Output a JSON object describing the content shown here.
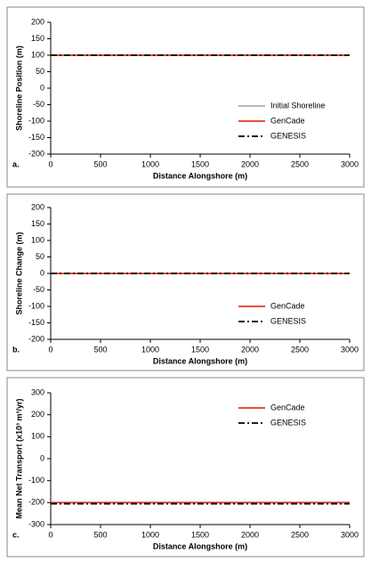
{
  "chart_data": [
    {
      "type": "line",
      "panel_label": "a.",
      "xlabel": "Distance Alongshore (m)",
      "ylabel": "Shoreline Position (m)",
      "x": [
        0,
        3000
      ],
      "series": [
        {
          "name": "Initial Shoreline",
          "color": "#b0b0b0",
          "dash": "solid",
          "values": [
            100,
            100
          ]
        },
        {
          "name": "GenCade",
          "color": "#e8322a",
          "dash": "solid",
          "values": [
            100,
            100
          ]
        },
        {
          "name": "GENESIS",
          "color": "#000000",
          "dash": "dashdot",
          "values": [
            100,
            100
          ]
        }
      ],
      "xlim": [
        0,
        3000
      ],
      "xticks": [
        0,
        500,
        1000,
        1500,
        2000,
        2500,
        3000
      ],
      "ylim": [
        -200,
        200
      ],
      "yticks": [
        -200,
        -150,
        -100,
        -50,
        0,
        50,
        100,
        150,
        200
      ],
      "legend": "lower right"
    },
    {
      "type": "line",
      "panel_label": "b.",
      "xlabel": "Distance Alongshore (m)",
      "ylabel": "Shoreline Change (m)",
      "x": [
        0,
        3000
      ],
      "series": [
        {
          "name": "GenCade",
          "color": "#e8322a",
          "dash": "solid",
          "values": [
            0,
            0
          ]
        },
        {
          "name": "GENESIS",
          "color": "#000000",
          "dash": "dashdot",
          "values": [
            0,
            0
          ]
        }
      ],
      "xlim": [
        0,
        3000
      ],
      "xticks": [
        0,
        500,
        1000,
        1500,
        2000,
        2500,
        3000
      ],
      "ylim": [
        -200,
        200
      ],
      "yticks": [
        -200,
        -150,
        -100,
        -50,
        0,
        50,
        100,
        150,
        200
      ],
      "legend": "lower right"
    },
    {
      "type": "line",
      "panel_label": "c.",
      "xlabel": "Distance Alongshore (m)",
      "ylabel": "Mean Net Transport (x10³ m³/yr)",
      "x": [
        0,
        3000
      ],
      "series": [
        {
          "name": "GenCade",
          "color": "#e8322a",
          "dash": "solid",
          "values": [
            -200,
            -200
          ]
        },
        {
          "name": "GENESIS",
          "color": "#000000",
          "dash": "dashdot",
          "values": [
            -205,
            -205
          ]
        }
      ],
      "xlim": [
        0,
        3000
      ],
      "xticks": [
        0,
        500,
        1000,
        1500,
        2000,
        2500,
        3000
      ],
      "ylim": [
        -300,
        300
      ],
      "yticks": [
        -300,
        -200,
        -100,
        0,
        100,
        200,
        300
      ],
      "legend": "upper right"
    }
  ]
}
